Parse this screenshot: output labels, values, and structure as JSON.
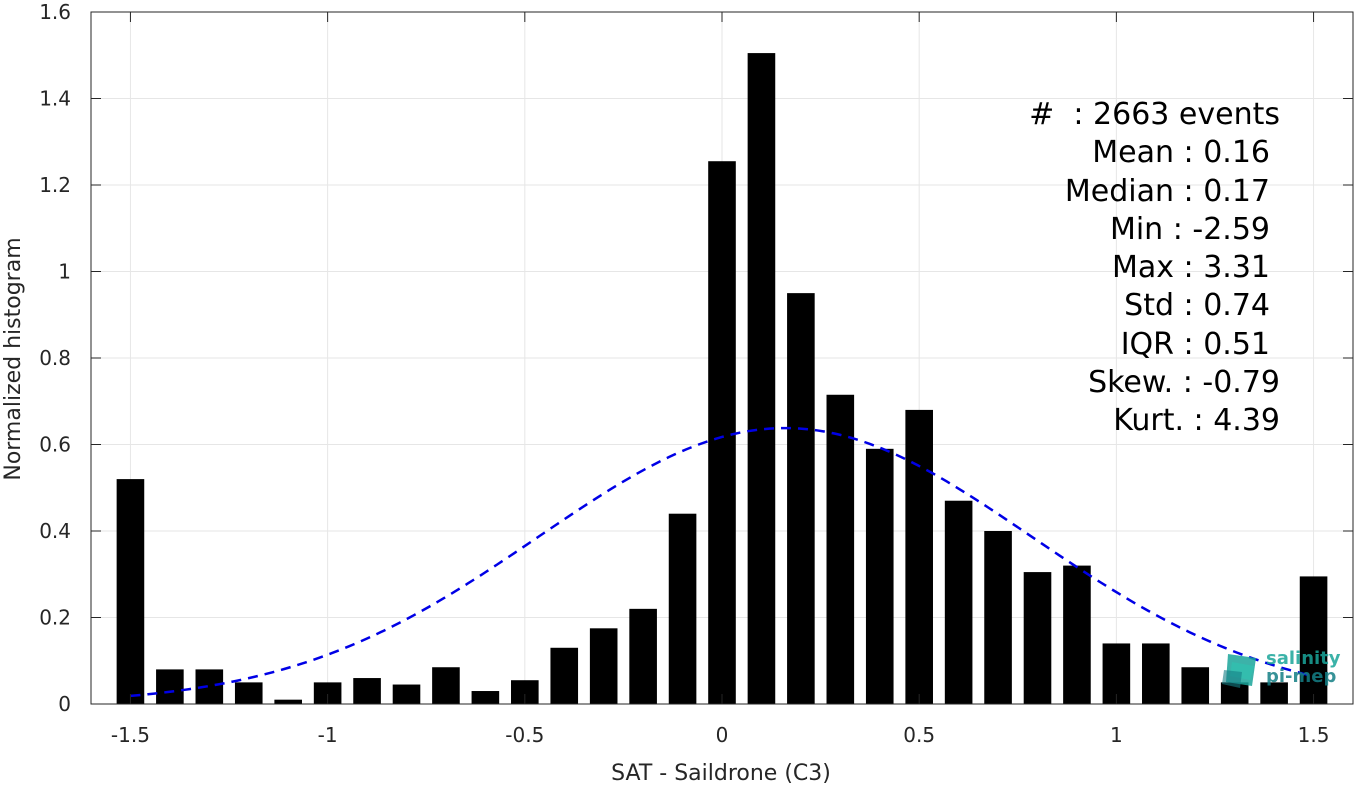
{
  "chart_data": {
    "type": "bar",
    "xlabel": "SAT - Saildrone (C3)",
    "ylabel": "Normalized histogram",
    "xlim": [
      -1.6,
      1.6
    ],
    "ylim": [
      0,
      1.6
    ],
    "xticks": [
      -1.5,
      -1,
      -0.5,
      0,
      0.5,
      1,
      1.5
    ],
    "xtick_labels": [
      "-1.5",
      "-1",
      "-0.5",
      "0",
      "0.5",
      "1",
      "1.5"
    ],
    "yticks": [
      0,
      0.2,
      0.4,
      0.6,
      0.8,
      1.0,
      1.2,
      1.4,
      1.6
    ],
    "ytick_labels": [
      "0",
      "0.2",
      "0.4",
      "0.6",
      "0.8",
      "1",
      "1.2",
      "1.4",
      "1.6"
    ],
    "grid": true,
    "bar_color": "#000000",
    "bin_width": 0.1,
    "bars": {
      "x": [
        -1.5,
        -1.4,
        -1.3,
        -1.2,
        -1.1,
        -1.0,
        -0.9,
        -0.8,
        -0.7,
        -0.6,
        -0.5,
        -0.4,
        -0.3,
        -0.2,
        -0.1,
        0.0,
        0.1,
        0.2,
        0.3,
        0.4,
        0.5,
        0.6,
        0.7,
        0.8,
        0.9,
        1.0,
        1.1,
        1.2,
        1.3,
        1.4,
        1.5
      ],
      "y": [
        0.52,
        0.08,
        0.08,
        0.05,
        0.01,
        0.05,
        0.06,
        0.045,
        0.085,
        0.03,
        0.055,
        0.13,
        0.175,
        0.22,
        0.44,
        1.255,
        1.505,
        0.95,
        0.715,
        0.59,
        0.68,
        0.47,
        0.4,
        0.305,
        0.32,
        0.14,
        0.14,
        0.085,
        0.05,
        0.05,
        0.295
      ]
    },
    "fit_curve": {
      "style": "dashed",
      "color": "#0000e6",
      "mean": 0.16,
      "std": 0.625,
      "peak": 0.638,
      "x_range": [
        -1.5,
        1.5
      ]
    },
    "stats": [
      {
        "label": "#  : ",
        "value": "2663 events"
      },
      {
        "label": "Mean : ",
        "value": "0.16"
      },
      {
        "label": "Median : ",
        "value": "0.17"
      },
      {
        "label": "Min : ",
        "value": "-2.59"
      },
      {
        "label": "Max : ",
        "value": "3.31"
      },
      {
        "label": "Std : ",
        "value": "0.74"
      },
      {
        "label": "IQR : ",
        "value": "0.51"
      },
      {
        "label": "Skew. : ",
        "value": "-0.79"
      },
      {
        "label": "Kurt. : ",
        "value": "4.39"
      }
    ]
  },
  "logo": {
    "line1": "salinity",
    "line2": "pi-mep",
    "color": "#1aa59a"
  }
}
